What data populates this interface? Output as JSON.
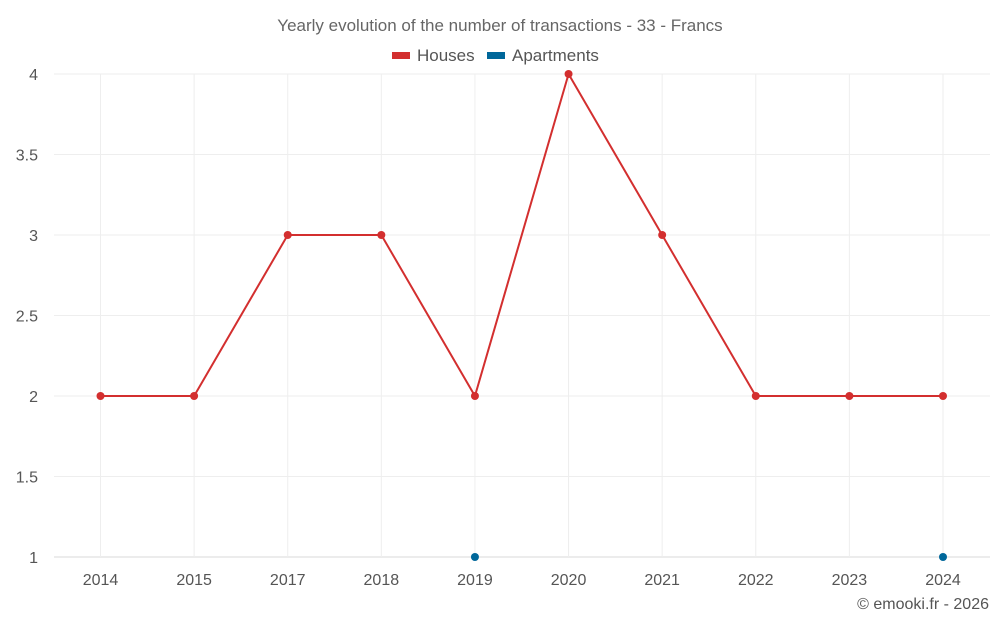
{
  "chart_data": {
    "type": "line",
    "title": "Yearly evolution of the number of transactions - 33 - Francs",
    "categories": [
      "2014",
      "2015",
      "2017",
      "2018",
      "2019",
      "2020",
      "2021",
      "2022",
      "2023",
      "2024"
    ],
    "series": [
      {
        "name": "Houses",
        "color": "#d32f2f",
        "values": [
          2,
          2,
          3,
          3,
          2,
          4,
          3,
          2,
          2,
          2
        ]
      },
      {
        "name": "Apartments",
        "color": "#00679a",
        "values": [
          null,
          null,
          null,
          null,
          1,
          null,
          null,
          null,
          null,
          1
        ]
      }
    ],
    "ylim": [
      1,
      4
    ],
    "yticks": [
      "1",
      "1.5",
      "2",
      "2.5",
      "3",
      "3.5",
      "4"
    ],
    "grid": true,
    "legend_position": "top-center",
    "credit": "© emooki.fr - 2026"
  }
}
